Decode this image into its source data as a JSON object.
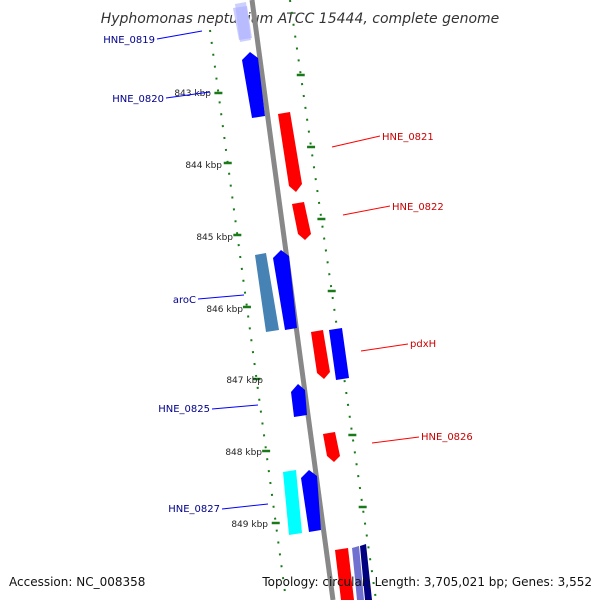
{
  "title": "Hyphomonas neptunium ATCC 15444, complete genome",
  "footer": {
    "accession": "Accession: NC_008358",
    "summary": "Topology: circular; Length: 3,705,021 bp; Genes: 3,552"
  },
  "colors": {
    "forward_strand": "#ff0000",
    "reverse_strand": "#0000ff",
    "forward_label": "#cc0000",
    "reverse_label": "#00008b",
    "aroC_gene": "#4682b4",
    "HNE_0827_neighbor": "#00ffff",
    "backbone": "#888888",
    "ticks": "#1a7a1a"
  },
  "kbp_ticks": [
    "843 kbp",
    "844 kbp",
    "845 kbp",
    "846 kbp",
    "847 kbp",
    "848 kbp",
    "849 kbp"
  ],
  "genes": [
    {
      "label": "HNE_0819",
      "side": "left"
    },
    {
      "label": "HNE_0820",
      "side": "left"
    },
    {
      "label": "HNE_0821",
      "side": "right"
    },
    {
      "label": "HNE_0822",
      "side": "right"
    },
    {
      "label": "aroC",
      "side": "left"
    },
    {
      "label": "pdxH",
      "side": "right"
    },
    {
      "label": "HNE_0825",
      "side": "left"
    },
    {
      "label": "HNE_0826",
      "side": "right"
    },
    {
      "label": "HNE_0827",
      "side": "left"
    }
  ]
}
